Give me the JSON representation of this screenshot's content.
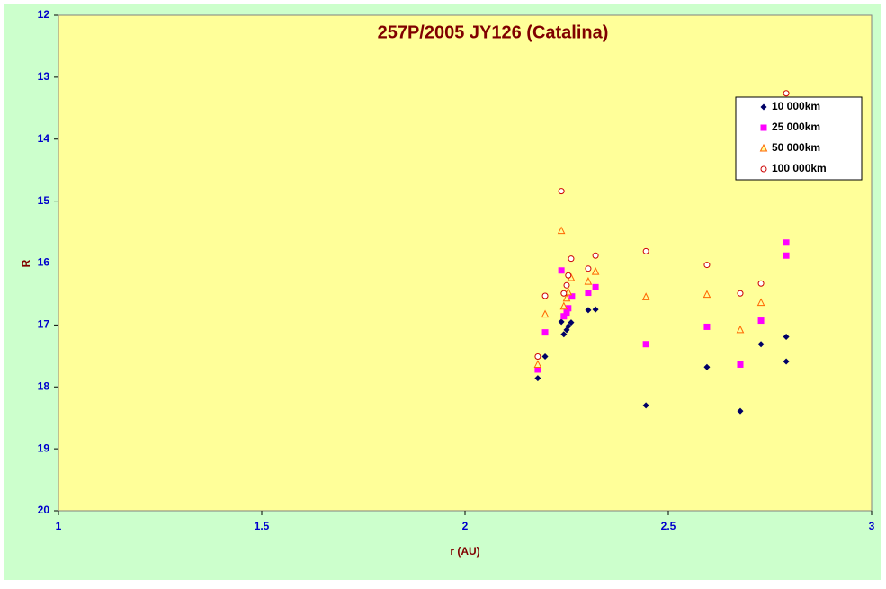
{
  "chart_data": {
    "type": "scatter",
    "title": "257P/2005 JY126 (Catalina)",
    "x_label": "r (AU)",
    "y_label": "R",
    "xlim": [
      1,
      3
    ],
    "xticks": [
      1,
      1.5,
      2,
      2.5,
      3
    ],
    "ylim": [
      12,
      20
    ],
    "yticks": [
      12,
      13,
      14,
      15,
      16,
      17,
      18,
      19,
      20
    ],
    "y_inverted": true,
    "legend": "upper-right",
    "series": [
      {
        "name": "10 000km",
        "color": "#000066",
        "marker": "diamond",
        "x": [
          2.179,
          2.197,
          2.237,
          2.243,
          2.25,
          2.254,
          2.261,
          2.303,
          2.321,
          2.445,
          2.595,
          2.677,
          2.728,
          2.79,
          2.79
        ],
        "values": [
          17.86,
          17.51,
          16.95,
          17.15,
          17.08,
          17.02,
          16.96,
          16.76,
          16.75,
          18.3,
          17.68,
          18.39,
          17.31,
          17.19,
          17.59
        ]
      },
      {
        "name": "25 000km",
        "color": "#ff00ff",
        "marker": "square",
        "x": [
          2.179,
          2.197,
          2.237,
          2.243,
          2.25,
          2.254,
          2.263,
          2.303,
          2.321,
          2.445,
          2.595,
          2.677,
          2.728,
          2.79,
          2.79
        ],
        "values": [
          17.72,
          17.12,
          16.12,
          16.86,
          16.8,
          16.73,
          16.54,
          16.48,
          16.39,
          17.31,
          17.03,
          17.64,
          16.93,
          15.67,
          15.88
        ]
      },
      {
        "name": "50 000km",
        "color": "#ff6600",
        "marker": "triangle",
        "x": [
          2.179,
          2.197,
          2.237,
          2.243,
          2.25,
          2.254,
          2.261,
          2.303,
          2.321,
          2.445,
          2.595,
          2.677,
          2.728
        ],
        "values": [
          17.64,
          16.83,
          15.48,
          16.7,
          16.57,
          16.47,
          16.24,
          16.3,
          16.14,
          16.55,
          16.51,
          17.08,
          16.64
        ]
      },
      {
        "name": "100 000km",
        "color": "#cc0000",
        "marker": "circle",
        "x": [
          2.179,
          2.197,
          2.237,
          2.243,
          2.25,
          2.254,
          2.261,
          2.303,
          2.321,
          2.445,
          2.595,
          2.677,
          2.728,
          2.79
        ],
        "values": [
          17.51,
          16.53,
          14.84,
          16.49,
          16.36,
          16.2,
          15.93,
          16.09,
          15.88,
          15.81,
          16.03,
          16.49,
          16.33,
          13.26
        ]
      }
    ]
  }
}
